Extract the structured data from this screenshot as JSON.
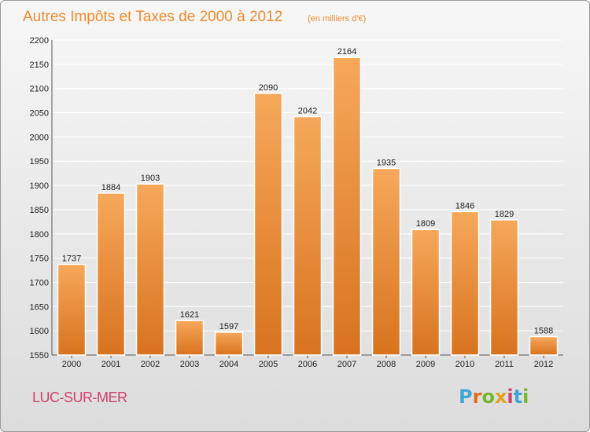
{
  "chart_data": {
    "type": "bar",
    "title": "Autres Impôts et Taxes de 2000 à 2012",
    "subtitle": "(en milliers d'€)",
    "categories": [
      "2000",
      "2001",
      "2002",
      "2003",
      "2004",
      "2005",
      "2006",
      "2007",
      "2008",
      "2009",
      "2010",
      "2011",
      "2012"
    ],
    "values": [
      1737,
      1884,
      1903,
      1621,
      1597,
      2090,
      2042,
      2164,
      1935,
      1809,
      1846,
      1829,
      1588
    ],
    "ylim": [
      1550,
      2200
    ],
    "yticks": [
      1550,
      1600,
      1650,
      1700,
      1750,
      1800,
      1850,
      1900,
      1950,
      2000,
      2050,
      2100,
      2150,
      2200
    ],
    "grid": true,
    "bar_color_top": "#f6a85a",
    "bar_color_bottom": "#d8731f"
  },
  "footer": {
    "city": "LUC-SUR-MER",
    "logo_letters": [
      "P",
      "r",
      "o",
      "x",
      "i",
      "t",
      "i"
    ],
    "logo_colors": [
      "#3fa7d6",
      "#e36d1b",
      "#76b82a",
      "#e4a11b",
      "#d6406a",
      "#3fa7d6",
      "#76b82a"
    ]
  }
}
